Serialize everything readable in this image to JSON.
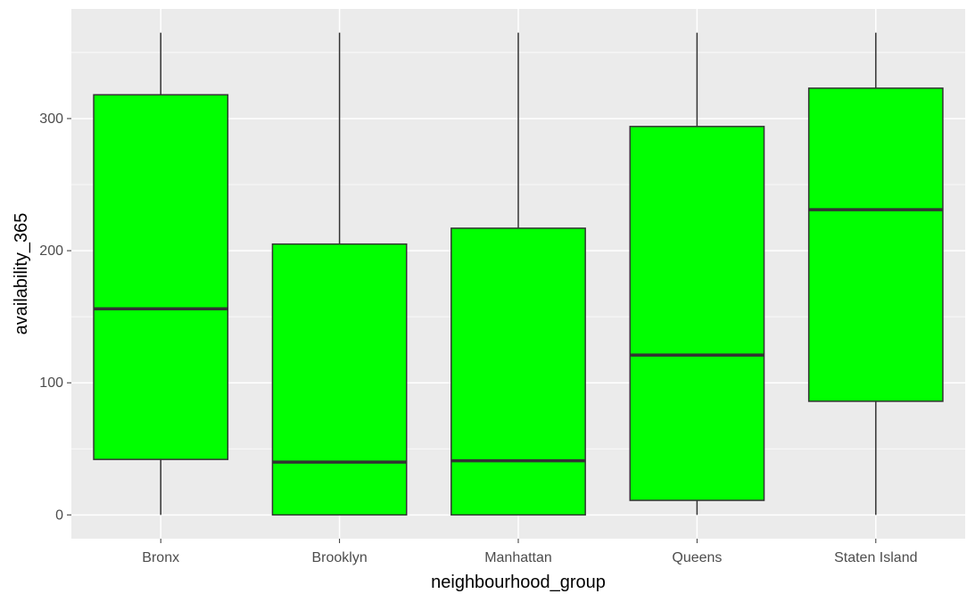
{
  "chart_data": {
    "type": "boxplot",
    "title": "",
    "xlabel": "neighbourhood_group",
    "ylabel": "availability_365",
    "ylim": [
      -18,
      383
    ],
    "y_ticks": [
      0,
      100,
      200,
      300
    ],
    "grid": true,
    "categories": [
      "Bronx",
      "Brooklyn",
      "Manhattan",
      "Queens",
      "Staten Island"
    ],
    "boxes": [
      {
        "category": "Bronx",
        "min": 0,
        "q1": 42,
        "median": 156,
        "q3": 318,
        "max": 365
      },
      {
        "category": "Brooklyn",
        "min": 0,
        "q1": 0,
        "median": 40,
        "q3": 205,
        "max": 365
      },
      {
        "category": "Manhattan",
        "min": 0,
        "q1": 0,
        "median": 41,
        "q3": 217,
        "max": 365
      },
      {
        "category": "Queens",
        "min": 0,
        "q1": 11,
        "median": 121,
        "q3": 294,
        "max": 365
      },
      {
        "category": "Staten Island",
        "min": 0,
        "q1": 86,
        "median": 231,
        "q3": 323,
        "max": 365
      }
    ],
    "colors": {
      "box_fill": "#00ff00",
      "box_stroke": "#333333",
      "panel_background": "#ebebeb",
      "grid": "#ffffff"
    }
  }
}
